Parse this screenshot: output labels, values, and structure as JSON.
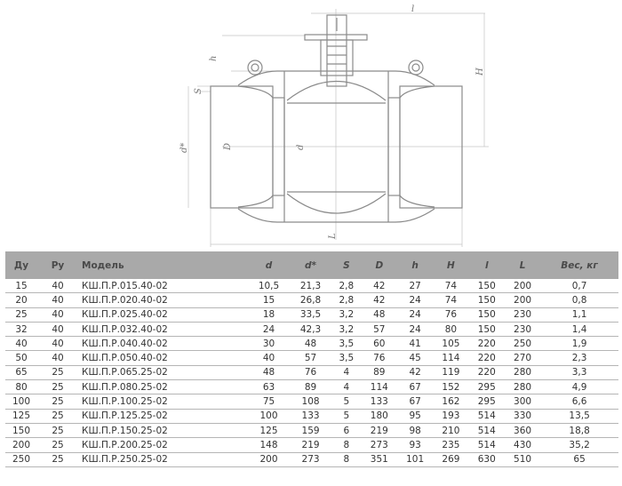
{
  "drawing": {
    "labels": {
      "l_top": "l",
      "h": "h",
      "S": "S",
      "d_star": "d*",
      "D": "D",
      "d": "d",
      "H": "H",
      "L": "L"
    }
  },
  "table": {
    "headers": [
      "Ду",
      "Ру",
      "Модель",
      "d",
      "d*",
      "S",
      "D",
      "h",
      "H",
      "l",
      "L",
      "Вес, кг"
    ],
    "rows": [
      [
        "15",
        "40",
        "КШ.П.Р.015.40-02",
        "10,5",
        "21,3",
        "2,8",
        "42",
        "27",
        "74",
        "150",
        "200",
        "0,7"
      ],
      [
        "20",
        "40",
        "КШ.П.Р.020.40-02",
        "15",
        "26,8",
        "2,8",
        "42",
        "24",
        "74",
        "150",
        "200",
        "0,8"
      ],
      [
        "25",
        "40",
        "КШ.П.Р.025.40-02",
        "18",
        "33,5",
        "3,2",
        "48",
        "24",
        "76",
        "150",
        "230",
        "1,1"
      ],
      [
        "32",
        "40",
        "КШ.П.Р.032.40-02",
        "24",
        "42,3",
        "3,2",
        "57",
        "24",
        "80",
        "150",
        "230",
        "1,4"
      ],
      [
        "40",
        "40",
        "КШ.П.Р.040.40-02",
        "30",
        "48",
        "3,5",
        "60",
        "41",
        "105",
        "220",
        "250",
        "1,9"
      ],
      [
        "50",
        "40",
        "КШ.П.Р.050.40-02",
        "40",
        "57",
        "3,5",
        "76",
        "45",
        "114",
        "220",
        "270",
        "2,3"
      ],
      [
        "65",
        "25",
        "КШ.П.Р.065.25-02",
        "48",
        "76",
        "4",
        "89",
        "42",
        "119",
        "220",
        "280",
        "3,3"
      ],
      [
        "80",
        "25",
        "КШ.П.Р.080.25-02",
        "63",
        "89",
        "4",
        "114",
        "67",
        "152",
        "295",
        "280",
        "4,9"
      ],
      [
        "100",
        "25",
        "КШ.П.Р.100.25-02",
        "75",
        "108",
        "5",
        "133",
        "67",
        "162",
        "295",
        "300",
        "6,6"
      ],
      [
        "125",
        "25",
        "КШ.П.Р.125.25-02",
        "100",
        "133",
        "5",
        "180",
        "95",
        "193",
        "514",
        "330",
        "13,5"
      ],
      [
        "150",
        "25",
        "КШ.П.Р.150.25-02",
        "125",
        "159",
        "6",
        "219",
        "98",
        "210",
        "514",
        "360",
        "18,8"
      ],
      [
        "200",
        "25",
        "КШ.П.Р.200.25-02",
        "148",
        "219",
        "8",
        "273",
        "93",
        "235",
        "514",
        "430",
        "35,2"
      ],
      [
        "250",
        "25",
        "КШ.П.Р.250.25-02",
        "200",
        "273",
        "8",
        "351",
        "101",
        "269",
        "630",
        "510",
        "65"
      ]
    ]
  }
}
